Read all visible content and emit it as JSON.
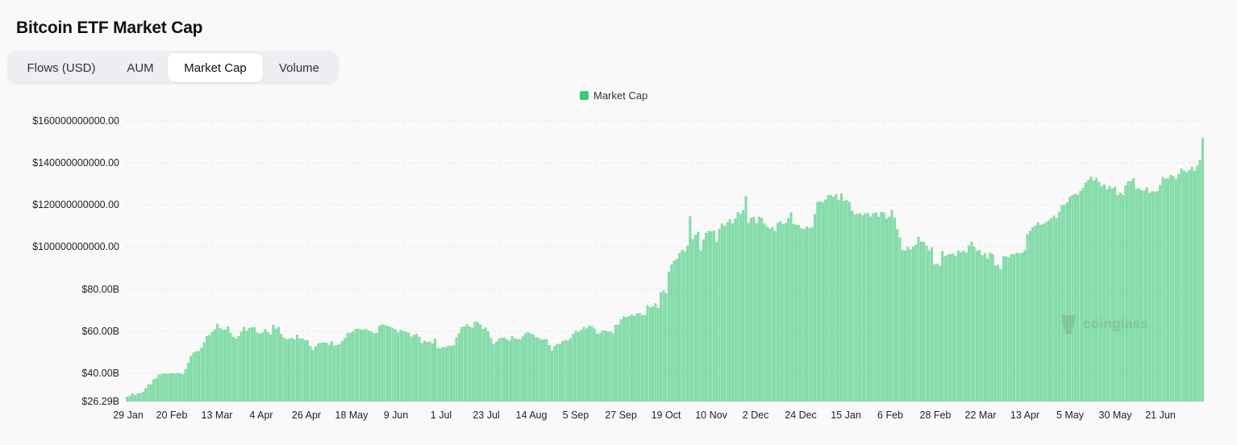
{
  "header": {
    "title": "Bitcoin ETF Market Cap"
  },
  "tabs": [
    {
      "label": "Flows (USD)",
      "active": false
    },
    {
      "label": "AUM",
      "active": false
    },
    {
      "label": "Market Cap",
      "active": true
    },
    {
      "label": "Volume",
      "active": false
    }
  ],
  "watermark": {
    "text": "coinglass"
  },
  "colors": {
    "bar_fill": "#86ddaa",
    "bar_stroke": "#52cc86",
    "legend_swatch": "#3ec878",
    "grid": "#e6e6e6",
    "axis_text": "#222222"
  },
  "chart_data": {
    "type": "bar",
    "legend": [
      {
        "name": "Market Cap",
        "color": "#3ec878"
      }
    ],
    "legend_position": "top-center",
    "grid": true,
    "y_axis": {
      "min": 26290000000,
      "max": 160000000000,
      "tick_values": [
        26290000000,
        40000000000,
        60000000000,
        80000000000,
        100000000000,
        120000000000,
        140000000000,
        160000000000
      ],
      "tick_labels": [
        "$26.29B",
        "$40.00B",
        "$60.00B",
        "$80.00B",
        "$100000000000.00",
        "$120000000000.00",
        "$140000000000.00",
        "$160000000000.00"
      ]
    },
    "x_axis": {
      "tick_labels": [
        "29 Jan",
        "20 Feb",
        "13 Mar",
        "4 Apr",
        "26 Apr",
        "18 May",
        "9 Jun",
        "1 Jul",
        "23 Jul",
        "14 Aug",
        "5 Sep",
        "27 Sep",
        "19 Oct",
        "10 Nov",
        "2 Dec",
        "24 Dec",
        "15 Jan",
        "6 Feb",
        "28 Feb",
        "22 Mar",
        "13 Apr",
        "5 May",
        "30 May",
        "21 Jun"
      ]
    },
    "series": [
      {
        "name": "Market Cap",
        "unit": "USD billions",
        "values": [
          28.5,
          29.0,
          30.2,
          29.4,
          30.1,
          30.3,
          30.8,
          32.7,
          34.5,
          34.6,
          36.9,
          37.5,
          39.3,
          39.4,
          39.9,
          39.6,
          39.8,
          40.0,
          39.7,
          40.1,
          39.9,
          39.4,
          41.9,
          44.9,
          48.2,
          49.8,
          50.4,
          50.4,
          52.1,
          54.7,
          57.6,
          58.2,
          59.6,
          60.8,
          63.5,
          61.5,
          60.7,
          60.7,
          62.2,
          59.2,
          57.3,
          56.5,
          57.6,
          59.8,
          62.0,
          60.3,
          61.5,
          61.9,
          61.9,
          59.3,
          58.7,
          59.3,
          61.0,
          59.5,
          58.4,
          63.0,
          61.2,
          62.0,
          58.8,
          57.0,
          56.2,
          56.4,
          56.9,
          56.0,
          58.4,
          56.5,
          56.6,
          55.7,
          55.6,
          52.9,
          51.0,
          52.8,
          54.2,
          54.4,
          54.5,
          54.5,
          53.5,
          55.1,
          53.1,
          53.4,
          53.9,
          55.4,
          56.6,
          59.2,
          59.2,
          59.7,
          61.0,
          61.2,
          60.8,
          60.6,
          61.1,
          60.3,
          59.8,
          58.9,
          59.2,
          62.6,
          63.3,
          62.9,
          62.5,
          62.1,
          61.6,
          60.9,
          59.4,
          60.6,
          60.0,
          59.8,
          59.2,
          57.4,
          58.2,
          58.8,
          57.4,
          54.3,
          55.4,
          54.8,
          55.1,
          54.1,
          56.4,
          52.1,
          51.8,
          52.4,
          52.4,
          53.1,
          53.0,
          53.2,
          57.1,
          59.1,
          62.0,
          62.3,
          63.3,
          62.2,
          61.6,
          64.5,
          64.4,
          63.2,
          61.1,
          61.7,
          59.9,
          56.8,
          53.7,
          55.0,
          56.3,
          56.9,
          56.9,
          56.1,
          55.5,
          57.6,
          56.6,
          56.3,
          56.1,
          57.4,
          59.0,
          59.5,
          58.9,
          58.5,
          57.1,
          56.8,
          56.0,
          56.1,
          56.2,
          53.4,
          50.7,
          52.9,
          53.9,
          53.9,
          55.3,
          55.8,
          55.6,
          56.6,
          58.7,
          60.1,
          59.6,
          60.6,
          62.0,
          61.3,
          62.7,
          62.4,
          61.2,
          58.8,
          59.0,
          60.3,
          60.3,
          59.8,
          59.8,
          59.0,
          63.0,
          63.1,
          65.7,
          67.0,
          66.7,
          67.2,
          67.9,
          67.3,
          68.5,
          68.6,
          67.7,
          67.6,
          72.4,
          71.4,
          71.8,
          73.3,
          71.1,
          78.5,
          79.3,
          78.2,
          88.2,
          91.5,
          93.4,
          94.2,
          96.9,
          98.4,
          97.7,
          100.4,
          114.4,
          103.6,
          105.6,
          107.0,
          98.2,
          103.4,
          106.5,
          107.4,
          107.2,
          107.5,
          102.2,
          108.4,
          111.0,
          109.7,
          111.6,
          113.0,
          111.0,
          113.4,
          116.4,
          115.5,
          117.3,
          124.2,
          111.2,
          113.7,
          114.1,
          111.1,
          114.2,
          113.7,
          111.0,
          109.6,
          108.5,
          109.3,
          107.4,
          111.3,
          112.1,
          110.7,
          111.2,
          113.6,
          116.2,
          110.8,
          110.3,
          110.2,
          108.6,
          108.3,
          109.5,
          108.7,
          109.3,
          115.5,
          121.2,
          121.6,
          121.1,
          122.4,
          124.5,
          124.6,
          123.7,
          125.0,
          122.1,
          125.3,
          121.8,
          122.1,
          121.2,
          117.1,
          115.3,
          115.6,
          115.9,
          114.9,
          115.9,
          116.0,
          114.3,
          115.9,
          116.3,
          114.2,
          116.5,
          116.2,
          113.4,
          114.2,
          117.5,
          113.8,
          108.2,
          104.3,
          98.4,
          98.2,
          99.8,
          98.6,
          100.0,
          100.8,
          104.6,
          102.4,
          102.2,
          100.4,
          98.2,
          99.6,
          91.6,
          92.0,
          91.0,
          97.8,
          95.4,
          96.1,
          96.5,
          96.7,
          95.4,
          98.1,
          97.3,
          98.1,
          97.2,
          100.5,
          102.3,
          99.8,
          98.0,
          98.4,
          96.0,
          96.9,
          94.4,
          97.1,
          96.4,
          91.1,
          91.4,
          89.3,
          95.5,
          95.4,
          94.9,
          96.4,
          96.3,
          97.1,
          96.7,
          97.0,
          98.2,
          105.8,
          107.5,
          109.1,
          110.1,
          111.5,
          110.4,
          110.8,
          111.7,
          112.4,
          113.6,
          114.7,
          113.5,
          116.6,
          119.7,
          119.8,
          121.1,
          123.7,
          124.5,
          125.2,
          124.7,
          126.5,
          127.9,
          130.5,
          131.8,
          133.3,
          131.4,
          132.8,
          130.8,
          128.8,
          129.6,
          127.3,
          128.8,
          127.6,
          128.6,
          124.6,
          125.6,
          124.6,
          129.2,
          131.2,
          131.2,
          132.6,
          127.6,
          127.8,
          126.8,
          126.6,
          128.2,
          125.6,
          126.5,
          126.1,
          126.4,
          129.3,
          133.2,
          132.3,
          132.5,
          134.2,
          133.5,
          132.1,
          134.6,
          137.2,
          136.3,
          135.4,
          136.4,
          138.0,
          136.2,
          138.6,
          141.4,
          151.7
        ]
      }
    ]
  }
}
